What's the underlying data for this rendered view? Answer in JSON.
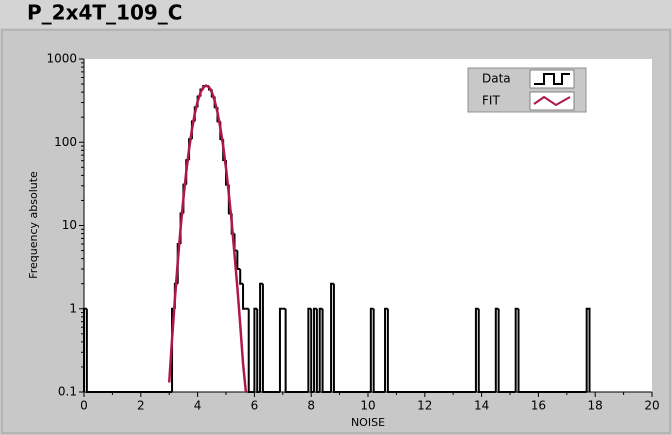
{
  "chart_data": {
    "type": "histogram",
    "title": "P_2x4T_109_C",
    "xlabel": "NOISE",
    "ylabel": "Frequency absolute",
    "log_y": true,
    "xlim": [
      0,
      20
    ],
    "xticks": [
      0,
      2,
      4,
      6,
      8,
      10,
      12,
      14,
      16,
      18,
      20
    ],
    "ylim": [
      0.1,
      1000
    ],
    "yticks": [
      0.1,
      1,
      10,
      100,
      1000
    ],
    "legend": "top-right",
    "series": [
      {
        "name": "Data",
        "color": "#000000",
        "bins": [
          0,
          0.1,
          3.1,
          3.2,
          3.3,
          3.4,
          3.5,
          3.6,
          3.7,
          3.8,
          3.9,
          4.0,
          4.1,
          4.2,
          4.3,
          4.4,
          4.5,
          4.6,
          4.7,
          4.8,
          4.9,
          5.0,
          5.1,
          5.2,
          5.3,
          5.4,
          5.5,
          5.6,
          5.7,
          5.8,
          6.0,
          6.1,
          6.2,
          6.3,
          6.9,
          7.0,
          7.1,
          7.9,
          8.0,
          8.1,
          8.2,
          8.3,
          8.4,
          8.7,
          8.8,
          10.1,
          10.2,
          10.6,
          10.7,
          13.8,
          13.9,
          14.5,
          14.6,
          15.2,
          15.3,
          17.7,
          17.8
        ],
        "counts": [
          1,
          0,
          1,
          2,
          6,
          14,
          31,
          61,
          109,
          178,
          263,
          354,
          430,
          474,
          474,
          430,
          354,
          263,
          178,
          109,
          61,
          31,
          14,
          8,
          5,
          3,
          2,
          1,
          1,
          0,
          1,
          0,
          2,
          0,
          1,
          1,
          0,
          1,
          0,
          1,
          0,
          1,
          0,
          2,
          0,
          1,
          0,
          1,
          0,
          1,
          0,
          1,
          0,
          1,
          0,
          1
        ]
      },
      {
        "name": "FIT",
        "color": "#b01848",
        "x": [
          3.0,
          3.1,
          3.2,
          3.3,
          3.4,
          3.5,
          3.6,
          3.7,
          3.8,
          3.9,
          4.0,
          4.1,
          4.2,
          4.3,
          4.4,
          4.5,
          4.6,
          4.7,
          4.8,
          4.9,
          5.0,
          5.1,
          5.2,
          5.3,
          5.4,
          5.5,
          5.6,
          5.7
        ],
        "values": [
          0.13,
          0.43,
          1.3,
          3.6,
          9.2,
          21,
          44,
          83,
          142,
          220,
          309,
          395,
          457,
          480,
          460,
          400,
          315,
          228,
          150,
          90,
          49,
          24,
          11,
          4.5,
          1.8,
          0.65,
          0.22,
          0.1
        ]
      }
    ]
  }
}
